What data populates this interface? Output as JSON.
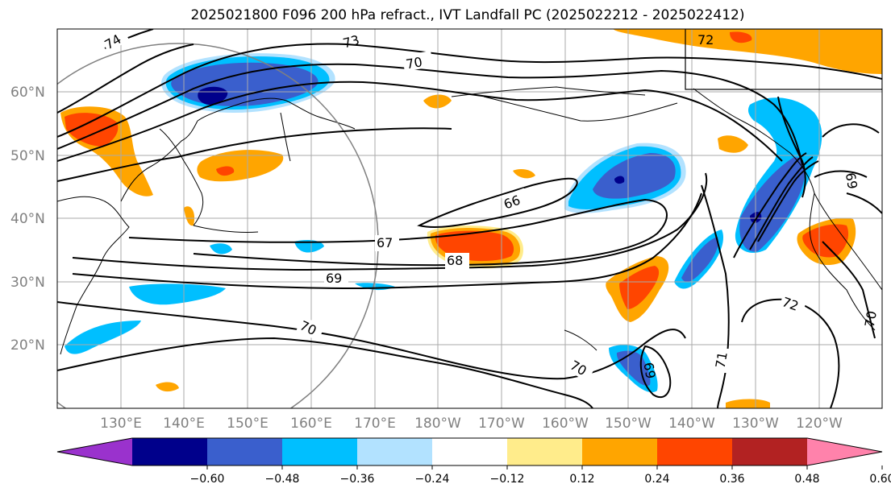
{
  "title": "2025021800 F096 200 hPa refract., IVT Landfall PC (2025022212 - 2025022412)",
  "lat_labels": [
    "60°N",
    "50°N",
    "40°N",
    "30°N",
    "20°N"
  ],
  "lon_labels": [
    "130°E",
    "140°E",
    "150°E",
    "160°E",
    "170°E",
    "180°W",
    "170°W",
    "160°W",
    "150°W",
    "140°W",
    "130°W",
    "120°W"
  ],
  "contour_labels": [
    "74",
    "73",
    "72",
    "70",
    "66",
    "67",
    "68",
    "69",
    "70",
    "72",
    "71",
    "70",
    "69",
    "70",
    "69"
  ],
  "colorbar": {
    "ticks": [
      "−0.60",
      "−0.48",
      "−0.36",
      "−0.24",
      "−0.12",
      "0.12",
      "0.24",
      "0.36",
      "0.48",
      "0.60"
    ],
    "colors": [
      "#9a32cd",
      "#00008b",
      "#3a5fcd",
      "#00bfff",
      "#b2e2ff",
      "#ffffff",
      "#ffec8b",
      "#ffa500",
      "#ff4500",
      "#b22222",
      "#ff82ab"
    ]
  },
  "fill_colors": {
    "blue_dark": "#00008b",
    "blue_mid": "#3a5fcd",
    "blue_light": "#00bfff",
    "blue_pale": "#b2e2ff",
    "yellow": "#ffec8b",
    "orange": "#ffa500",
    "red": "#ff4500"
  }
}
